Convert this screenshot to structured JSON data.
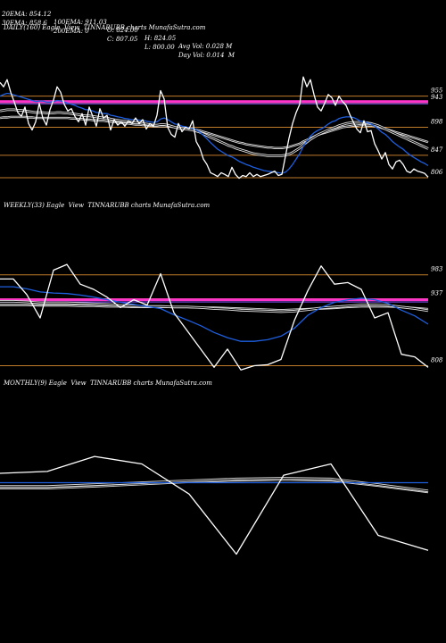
{
  "header": {
    "ema20": "20EMA: 854.12",
    "ema100": "100EMA: 911.03",
    "open": "O: 824.00",
    "high": "H: 824.05",
    "avg_vol": "Avg Vol: 0.028 M",
    "ema30": "30EMA: 858.6",
    "ema200": "200EMA: 0",
    "close": "C: 807.05",
    "low": "L: 800.00",
    "day_vol": "Day Vol: 0.014  M"
  },
  "colors": {
    "background": "#000000",
    "price": "#ffffff",
    "ema_blue": "#1e5fe0",
    "level": "#c07a2a",
    "pink": "#ff33cc",
    "ema_grey": "#9a9a9a"
  },
  "chart_data": [
    {
      "type": "line",
      "title": "DAILY(160) Eagle  View  TINNARUBB charts MunafaSutra.com",
      "levels": [
        955,
        943,
        898,
        847,
        806
      ],
      "level_labels": [
        "955",
        "943",
        "898",
        "847",
        "806"
      ],
      "ylim": [
        788,
        1000
      ],
      "x": [
        0,
        4,
        8,
        12,
        16,
        20,
        24,
        28,
        32,
        36,
        40,
        44,
        48,
        52,
        56,
        60,
        64,
        68,
        72,
        76,
        80,
        84,
        88,
        92,
        96,
        100,
        104,
        108,
        112,
        116,
        120,
        124,
        128,
        132,
        136,
        140,
        144,
        148,
        152,
        156,
        160,
        164,
        168,
        172,
        176,
        180,
        184,
        188,
        192,
        196,
        200,
        204,
        208,
        212,
        216,
        220,
        224,
        228,
        232,
        236,
        240,
        244,
        248,
        252,
        256,
        260,
        264,
        268,
        272,
        276,
        280,
        284,
        288,
        292,
        296,
        300,
        304,
        308,
        312,
        316,
        320,
        324,
        328,
        332,
        336,
        340,
        344,
        348,
        352,
        356,
        360,
        364,
        368,
        372,
        376,
        380,
        384,
        388,
        392,
        396,
        400,
        404,
        408,
        412,
        416,
        420,
        424,
        428,
        432,
        436,
        440,
        444,
        448,
        452,
        456,
        460,
        464,
        468,
        472,
        476,
        480
      ],
      "series": [
        {
          "role": "price",
          "values": [
            980,
            972,
            985,
            962,
            944,
            925,
            918,
            935,
            905,
            893,
            908,
            942,
            915,
            902,
            930,
            948,
            972,
            962,
            940,
            928,
            932,
            918,
            908,
            923,
            902,
            935,
            918,
            900,
            932,
            915,
            920,
            893,
            912,
            902,
            908,
            900,
            910,
            905,
            915,
            905,
            912,
            895,
            905,
            900,
            920,
            965,
            950,
            898,
            885,
            880,
            905,
            890,
            898,
            895,
            910,
            872,
            860,
            840,
            830,
            815,
            812,
            808,
            815,
            812,
            808,
            825,
            812,
            805,
            810,
            808,
            815,
            808,
            812,
            808,
            810,
            812,
            815,
            818,
            810,
            812,
            845,
            878,
            905,
            925,
            940,
            990,
            972,
            985,
            958,
            935,
            928,
            942,
            958,
            952,
            938,
            955,
            945,
            938,
            922,
            908,
            895,
            888,
            910,
            890,
            892,
            868,
            855,
            840,
            852,
            830,
            822,
            835,
            838,
            830,
            818,
            815,
            822,
            818,
            816,
            814,
            807
          ]
        },
        {
          "role": "ema-blue",
          "values": [
            955,
            958,
            960,
            959,
            957,
            955,
            953,
            951,
            949,
            947,
            945,
            946,
            946,
            944,
            944,
            945,
            947,
            946,
            944,
            942,
            940,
            938,
            935,
            933,
            930,
            930,
            928,
            925,
            925,
            923,
            923,
            920,
            919,
            917,
            916,
            914,
            913,
            912,
            912,
            911,
            911,
            909,
            908,
            907,
            908,
            913,
            915,
            912,
            908,
            904,
            903,
            900,
            899,
            897,
            896,
            893,
            889,
            883,
            877,
            870,
            864,
            858,
            854,
            850,
            846,
            844,
            840,
            836,
            833,
            830,
            828,
            825,
            823,
            821,
            819,
            818,
            817,
            816,
            815,
            814,
            816,
            822,
            830,
            840,
            850,
            863,
            873,
            882,
            888,
            892,
            895,
            899,
            904,
            908,
            910,
            914,
            916,
            917,
            917,
            916,
            913,
            909,
            909,
            906,
            904,
            900,
            895,
            889,
            885,
            879,
            872,
            867,
            862,
            858,
            852,
            847,
            843,
            839,
            835,
            832,
            828
          ]
        },
        {
          "role": "ema-grey",
          "values": [
            928,
            929,
            930,
            930,
            930,
            929,
            929,
            928,
            927,
            926,
            925,
            925,
            925,
            924,
            924,
            924,
            925,
            925,
            924,
            924,
            923,
            922,
            921,
            920,
            919,
            919,
            918,
            917,
            916,
            915,
            915,
            913,
            912,
            911,
            910,
            909,
            908,
            907,
            906,
            906,
            905,
            904,
            903,
            902,
            902,
            903,
            903,
            902,
            900,
            898,
            897,
            896,
            895,
            894,
            893,
            891,
            889,
            886,
            883,
            880,
            877,
            874,
            871,
            868,
            865,
            863,
            860,
            858,
            856,
            854,
            852,
            850,
            849,
            848,
            847,
            846,
            846,
            846,
            846,
            846,
            847,
            849,
            852,
            856,
            860,
            866,
            871,
            876,
            880,
            884,
            887,
            890,
            893,
            896,
            898,
            901,
            903,
            905,
            906,
            907,
            907,
            907,
            907,
            906,
            905,
            903,
            901,
            898,
            895,
            892,
            889,
            886,
            883,
            880,
            877,
            874,
            871,
            868,
            865,
            862,
            859
          ]
        },
        {
          "role": "ema-grey2",
          "values": [
            915,
            916,
            916,
            917,
            917,
            917,
            917,
            917,
            916,
            916,
            915,
            915,
            915,
            915,
            915,
            915,
            915,
            915,
            915,
            915,
            914,
            914,
            913,
            913,
            912,
            912,
            911,
            911,
            910,
            910,
            909,
            908,
            908,
            907,
            906,
            905,
            905,
            904,
            903,
            903,
            902,
            902,
            901,
            900,
            900,
            900,
            900,
            900,
            899,
            898,
            897,
            896,
            896,
            895,
            894,
            893,
            892,
            890,
            888,
            886,
            884,
            882,
            880,
            878,
            876,
            874,
            872,
            870,
            869,
            867,
            866,
            865,
            864,
            863,
            862,
            861,
            861,
            860,
            860,
            860,
            861,
            862,
            864,
            866,
            868,
            872,
            875,
            878,
            881,
            884,
            886,
            888,
            890,
            892,
            894,
            896,
            898,
            899,
            900,
            901,
            901,
            902,
            902,
            901,
            901,
            900,
            899,
            897,
            895,
            893,
            891,
            889,
            887,
            885,
            883,
            881,
            879,
            877,
            875,
            873,
            871
          ]
        }
      ]
    },
    {
      "type": "line",
      "title": "WEEKLY(33) Eagle  View  TINNARUBB charts MunafaSutra.com",
      "levels": [
        983,
        937,
        808
      ],
      "level_labels": [
        "983",
        "937",
        "808"
      ],
      "ylim": [
        790,
        1010
      ],
      "x": [
        0,
        15,
        30,
        45,
        60,
        75,
        90,
        105,
        120,
        135,
        150,
        165,
        180,
        195,
        210,
        225,
        240,
        255,
        270,
        285,
        300,
        315,
        330,
        345,
        360,
        375,
        390,
        405,
        420,
        435,
        450,
        465,
        480
      ],
      "series": [
        {
          "role": "price",
          "values": [
            975,
            975,
            945,
            900,
            992,
            1003,
            965,
            955,
            940,
            920,
            935,
            925,
            985,
            910,
            875,
            840,
            805,
            840,
            800,
            808,
            810,
            820,
            895,
            952,
            1000,
            965,
            968,
            955,
            900,
            910,
            830,
            825,
            805
          ]
        },
        {
          "role": "ema-blue",
          "values": [
            960,
            960,
            956,
            950,
            948,
            947,
            944,
            940,
            935,
            930,
            926,
            922,
            918,
            906,
            896,
            885,
            872,
            862,
            855,
            855,
            858,
            865,
            880,
            905,
            920,
            930,
            935,
            938,
            935,
            928,
            915,
            904,
            888
          ]
        },
        {
          "role": "ema-grey",
          "values": [
            932,
            932,
            931,
            929,
            929,
            929,
            928,
            927,
            926,
            924,
            923,
            922,
            922,
            921,
            921,
            920,
            918,
            917,
            915,
            914,
            913,
            912,
            913,
            916,
            919,
            921,
            923,
            925,
            925,
            924,
            921,
            918,
            914
          ]
        },
        {
          "role": "ema-grey2",
          "values": [
            925,
            925,
            925,
            924,
            924,
            924,
            923,
            923,
            922,
            922,
            921,
            921,
            921,
            921,
            921,
            920,
            920,
            919,
            918,
            917,
            916,
            915,
            916,
            917,
            918,
            919,
            921,
            922,
            922,
            922,
            921,
            919,
            917
          ]
        }
      ]
    },
    {
      "type": "line",
      "title": "MONTHLY(9) Eagle  View  TINNARUBB charts MunafaSutra.com",
      "levels": [],
      "level_labels": [],
      "ylim": [
        700,
        1080
      ],
      "x": [
        0,
        53,
        106,
        159,
        212,
        265,
        318,
        371,
        424,
        480
      ],
      "series": [
        {
          "role": "price",
          "values": [
            985,
            990,
            1030,
            1010,
            930,
            770,
            980,
            1010,
            820,
            780
          ]
        },
        {
          "role": "ema-blue",
          "values": [
            960,
            960,
            960,
            960,
            960,
            960,
            960,
            960,
            960,
            960
          ]
        },
        {
          "role": "ema-grey",
          "values": [
            950,
            950,
            955,
            960,
            965,
            970,
            972,
            970,
            955,
            938
          ]
        },
        {
          "role": "ema-grey2",
          "values": [
            945,
            945,
            950,
            956,
            962,
            966,
            968,
            966,
            952,
            935
          ]
        }
      ]
    }
  ]
}
